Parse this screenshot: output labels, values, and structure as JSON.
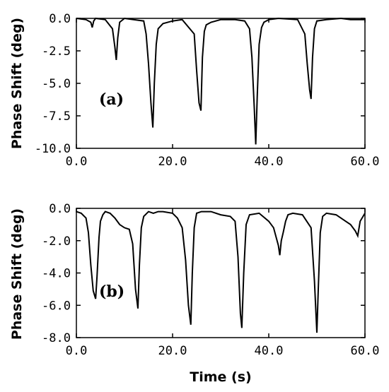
{
  "chart_data": [
    {
      "type": "line",
      "panel_label": "(a)",
      "ylabel": "Phase Shift (deg)",
      "xlabel": "",
      "xlim": [
        0,
        60
      ],
      "ylim": [
        -10,
        0
      ],
      "x_ticks": [
        "0.0",
        "20.0",
        "40.0",
        "60.0"
      ],
      "y_ticks": [
        "0.0",
        "-2.5",
        "-5.0",
        "-7.5",
        "-10.0"
      ],
      "x_tick_values": [
        0,
        20,
        40,
        60
      ],
      "y_tick_values": [
        0,
        -2.5,
        -5,
        -7.5,
        -10
      ],
      "grid": false,
      "series": [
        {
          "x": [
            0,
            2,
            3,
            3.3,
            3.6,
            4,
            6,
            7.5,
            8,
            8.3,
            8.6,
            9,
            10,
            14,
            14.5,
            15,
            15.5,
            15.9,
            16.2,
            16.6,
            17,
            18,
            20,
            22,
            24.5,
            25,
            25.5,
            25.9,
            26.2,
            26.6,
            27,
            28,
            30,
            33,
            35,
            36,
            36.5,
            37,
            37.3,
            37.6,
            38,
            38.5,
            39,
            40,
            42,
            46,
            47.5,
            48,
            48.5,
            48.8,
            49.1,
            49.5,
            50,
            52,
            55,
            57,
            60
          ],
          "y": [
            0,
            -0.1,
            -0.3,
            -0.7,
            -0.2,
            0,
            -0.1,
            -0.8,
            -2.2,
            -3.2,
            -1.5,
            -0.3,
            0,
            -0.2,
            -1.2,
            -3.5,
            -6.5,
            -8.4,
            -5,
            -2,
            -0.8,
            -0.4,
            -0.2,
            -0.1,
            -1.2,
            -4,
            -6.5,
            -7.1,
            -3,
            -1,
            -0.5,
            -0.3,
            -0.1,
            -0.1,
            -0.2,
            -0.8,
            -3,
            -7,
            -9.7,
            -6,
            -2,
            -0.7,
            -0.3,
            -0.1,
            0,
            -0.1,
            -1.2,
            -3.5,
            -5.5,
            -6.2,
            -3,
            -0.8,
            -0.2,
            -0.1,
            0,
            -0.1,
            -0.1
          ]
        }
      ]
    },
    {
      "type": "line",
      "panel_label": "(b)",
      "ylabel": "Phase Shift (deg)",
      "xlabel": "Time (s)",
      "xlim": [
        0,
        60
      ],
      "ylim": [
        -8,
        0
      ],
      "x_ticks": [
        "0.0",
        "20.0",
        "40.0",
        "60.0"
      ],
      "y_ticks": [
        "0.0",
        "-2.0",
        "-4.0",
        "-6.0",
        "-8.0"
      ],
      "x_tick_values": [
        0,
        20,
        40,
        60
      ],
      "y_tick_values": [
        0,
        -2,
        -4,
        -6,
        -8
      ],
      "grid": false,
      "series": [
        {
          "x": [
            0,
            1,
            2,
            2.5,
            3,
            3.5,
            4,
            4.3,
            4.7,
            5,
            5.5,
            6,
            7,
            8,
            9,
            10,
            11,
            11.7,
            12.3,
            12.8,
            13.1,
            13.5,
            14,
            15,
            16,
            17,
            18,
            20,
            21,
            22,
            22.7,
            23.3,
            23.8,
            24.1,
            24.5,
            25,
            26,
            28,
            30,
            32,
            33,
            33.6,
            34.1,
            34.4,
            34.8,
            35.3,
            36,
            38,
            40,
            41,
            42,
            42.3,
            42.6,
            43,
            43.5,
            44,
            45,
            47,
            48.8,
            49.5,
            50,
            50.3,
            50.7,
            51.2,
            52,
            54,
            56,
            57,
            58,
            58.5,
            59,
            60
          ],
          "y": [
            -0.2,
            -0.3,
            -0.6,
            -1.5,
            -3.5,
            -5.1,
            -5.6,
            -4.2,
            -1.8,
            -0.8,
            -0.4,
            -0.2,
            -0.3,
            -0.6,
            -1,
            -1.2,
            -1.3,
            -2.2,
            -5,
            -6.2,
            -3.5,
            -1.2,
            -0.5,
            -0.2,
            -0.3,
            -0.2,
            -0.2,
            -0.3,
            -0.6,
            -1.2,
            -3.2,
            -6,
            -7.2,
            -4,
            -1.2,
            -0.3,
            -0.2,
            -0.2,
            -0.4,
            -0.5,
            -0.8,
            -3,
            -6.5,
            -7.4,
            -4,
            -1,
            -0.4,
            -0.3,
            -0.8,
            -1.2,
            -2.3,
            -2.9,
            -2,
            -1.5,
            -0.8,
            -0.4,
            -0.3,
            -0.4,
            -1.2,
            -4.5,
            -7.7,
            -5,
            -1.5,
            -0.5,
            -0.3,
            -0.4,
            -0.8,
            -1,
            -1.4,
            -1.7,
            -0.8,
            -0.3
          ]
        }
      ]
    }
  ]
}
